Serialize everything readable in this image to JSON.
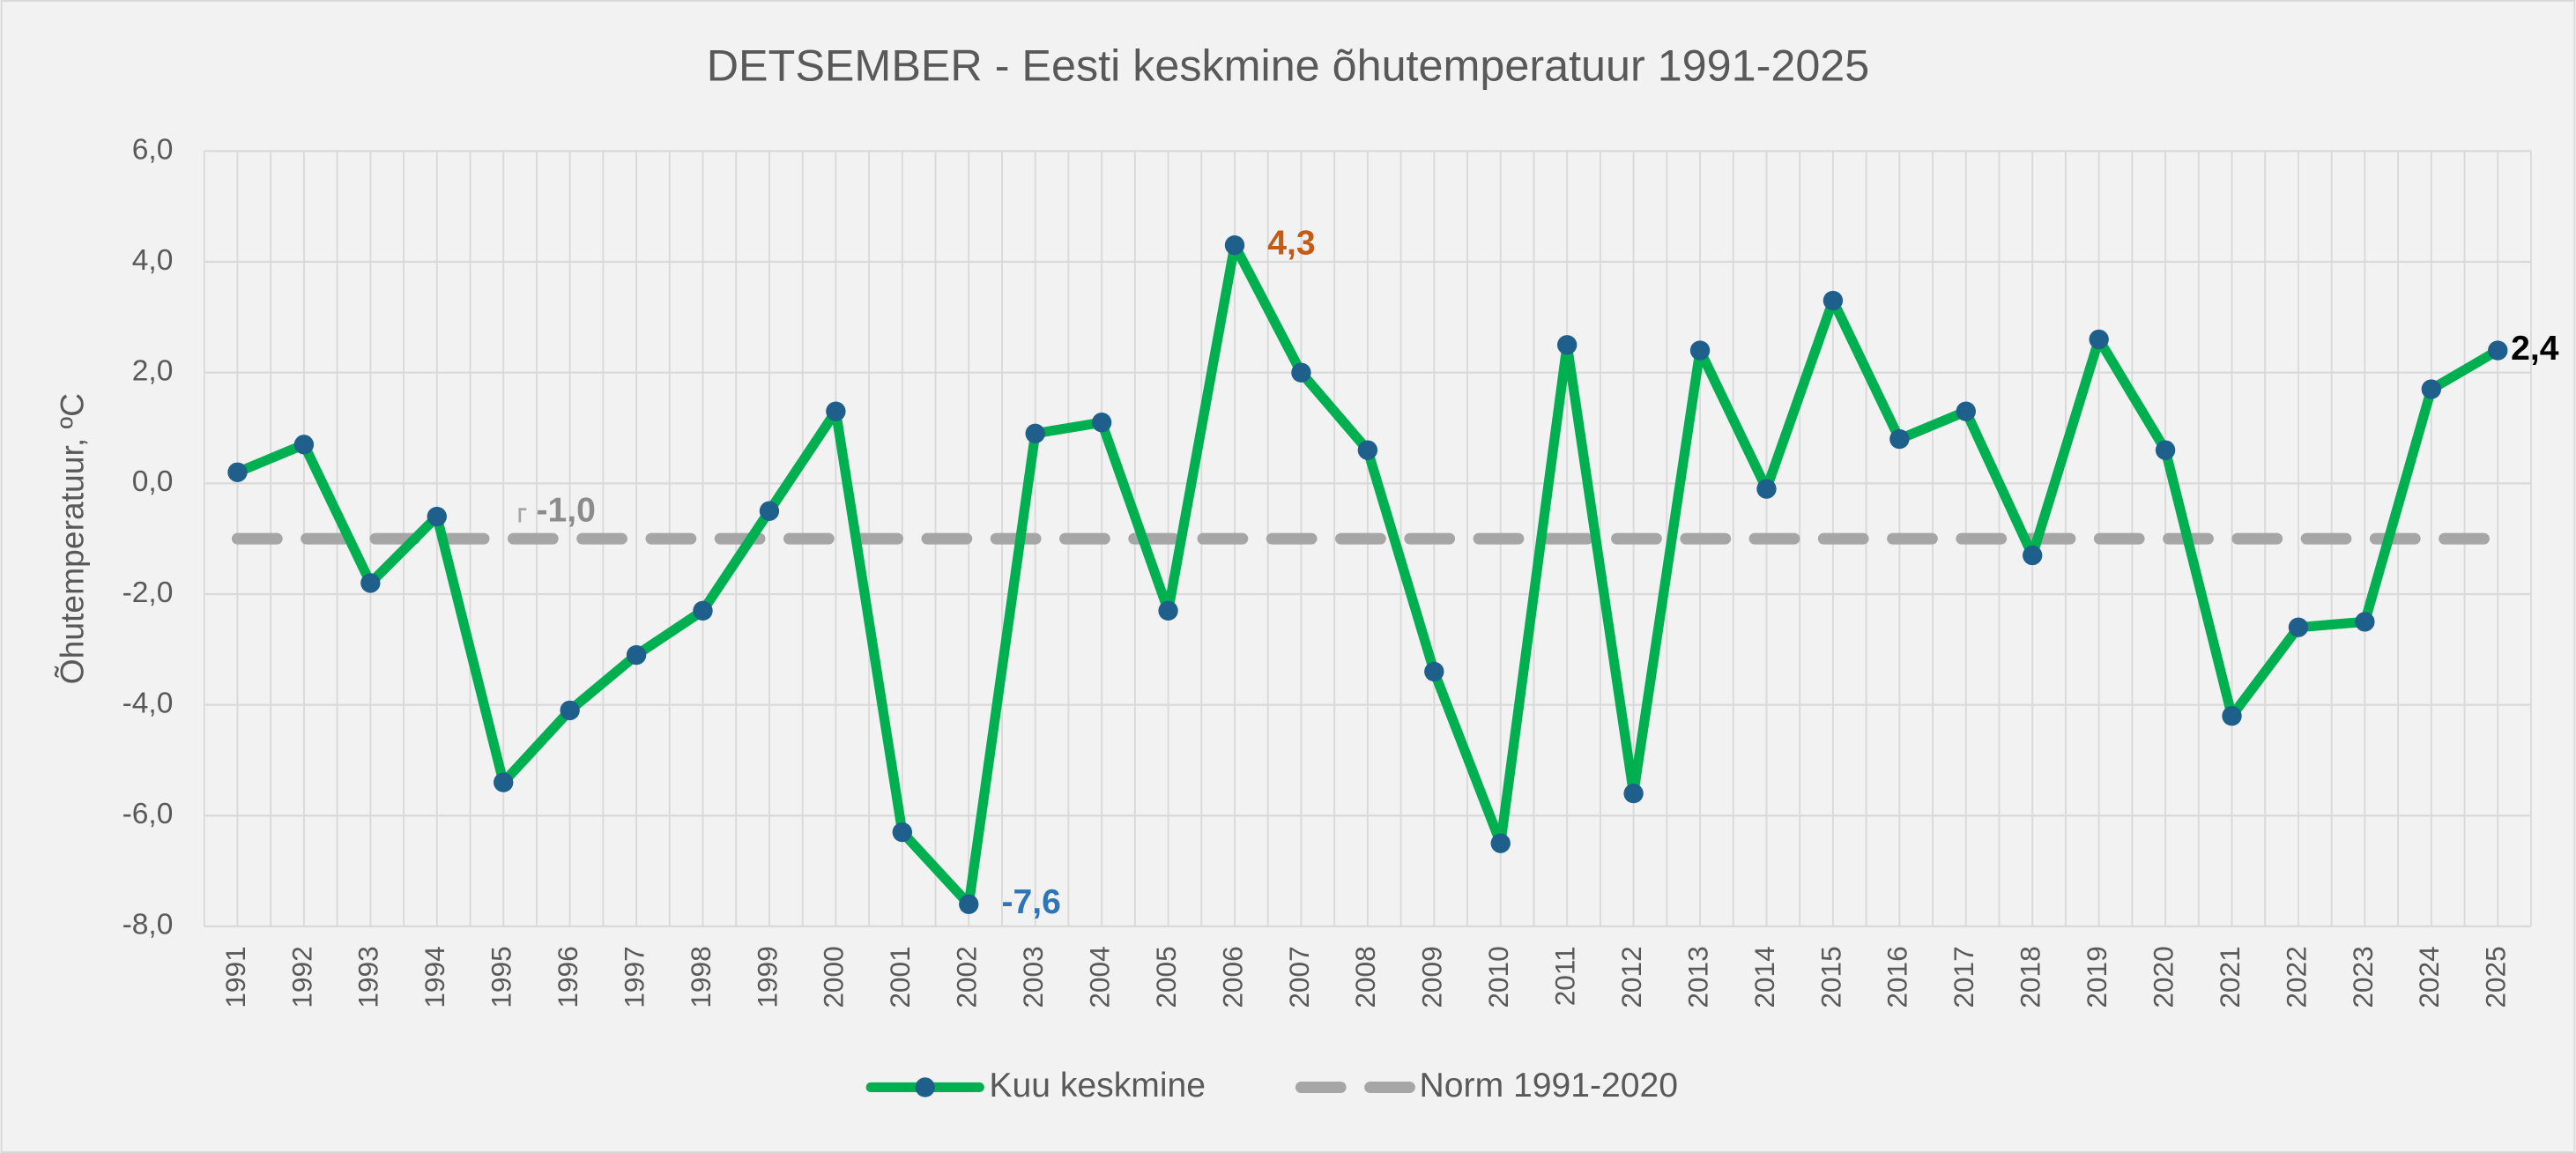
{
  "chart_data": {
    "type": "line",
    "title": "DETSEMBER - Eesti keskmine õhutemperatuur 1991-2025",
    "y_label": "Õhutemperatuur, ºC",
    "categories": [
      "1991",
      "1992",
      "1993",
      "1994",
      "1995",
      "1996",
      "1997",
      "1998",
      "1999",
      "2000",
      "2001",
      "2002",
      "2003",
      "2004",
      "2005",
      "2006",
      "2007",
      "2008",
      "2009",
      "2010",
      "2011",
      "2012",
      "2013",
      "2014",
      "2015",
      "2016",
      "2017",
      "2018",
      "2019",
      "2020",
      "2021",
      "2022",
      "2023",
      "2024",
      "2025"
    ],
    "series": [
      {
        "name": "Kuu keskmine",
        "color": "#00b050",
        "marker_color": "#1f5f8b",
        "values": [
          0.2,
          0.7,
          -1.8,
          -0.6,
          -5.4,
          -4.1,
          -3.1,
          -2.3,
          -0.5,
          1.3,
          -6.3,
          -7.6,
          0.9,
          1.1,
          -2.3,
          4.3,
          2.0,
          0.6,
          -3.4,
          -6.5,
          2.5,
          -5.6,
          2.4,
          -0.1,
          3.3,
          0.8,
          1.3,
          -1.3,
          2.6,
          0.6,
          -4.2,
          -2.6,
          -2.5,
          1.7,
          2.4
        ],
        "value_labels": [
          null,
          null,
          null,
          null,
          null,
          null,
          null,
          null,
          null,
          null,
          null,
          "-7,6",
          null,
          null,
          null,
          "4,3",
          null,
          null,
          null,
          null,
          null,
          null,
          null,
          null,
          null,
          null,
          null,
          null,
          null,
          null,
          null,
          null,
          null,
          null,
          "2,4"
        ]
      },
      {
        "name": "Norm 1991-2020",
        "color": "#a6a6a6",
        "dashed": true,
        "values": [
          -1.0,
          -1.0,
          -1.0,
          -1.0,
          -1.0,
          -1.0,
          -1.0,
          -1.0,
          -1.0,
          -1.0,
          -1.0,
          -1.0,
          -1.0,
          -1.0,
          -1.0,
          -1.0,
          -1.0,
          -1.0,
          -1.0,
          -1.0,
          -1.0,
          -1.0,
          -1.0,
          -1.0,
          -1.0,
          -1.0,
          -1.0,
          -1.0,
          -1.0,
          -1.0,
          -1.0,
          -1.0,
          -1.0,
          -1.0,
          -1.0
        ],
        "value_labels": [
          null,
          null,
          null,
          null,
          "-1,0",
          null,
          null,
          null,
          null,
          null,
          null,
          null,
          null,
          null,
          null,
          null,
          null,
          null,
          null,
          null,
          null,
          null,
          null,
          null,
          null,
          null,
          null,
          null,
          null,
          null,
          null,
          null,
          null,
          null,
          null
        ]
      }
    ],
    "ylim": [
      -8,
      6
    ],
    "yticks": [
      {
        "value": -8,
        "label": "-8,0"
      },
      {
        "value": -6,
        "label": "-6,0"
      },
      {
        "value": -4,
        "label": "-4,0"
      },
      {
        "value": -2,
        "label": "-2,0"
      },
      {
        "value": 0,
        "label": "0,0"
      },
      {
        "value": 2,
        "label": "2,0"
      },
      {
        "value": 4,
        "label": "4,0"
      },
      {
        "value": 6,
        "label": "6,0"
      }
    ],
    "grid": true,
    "legend": "bottom"
  }
}
